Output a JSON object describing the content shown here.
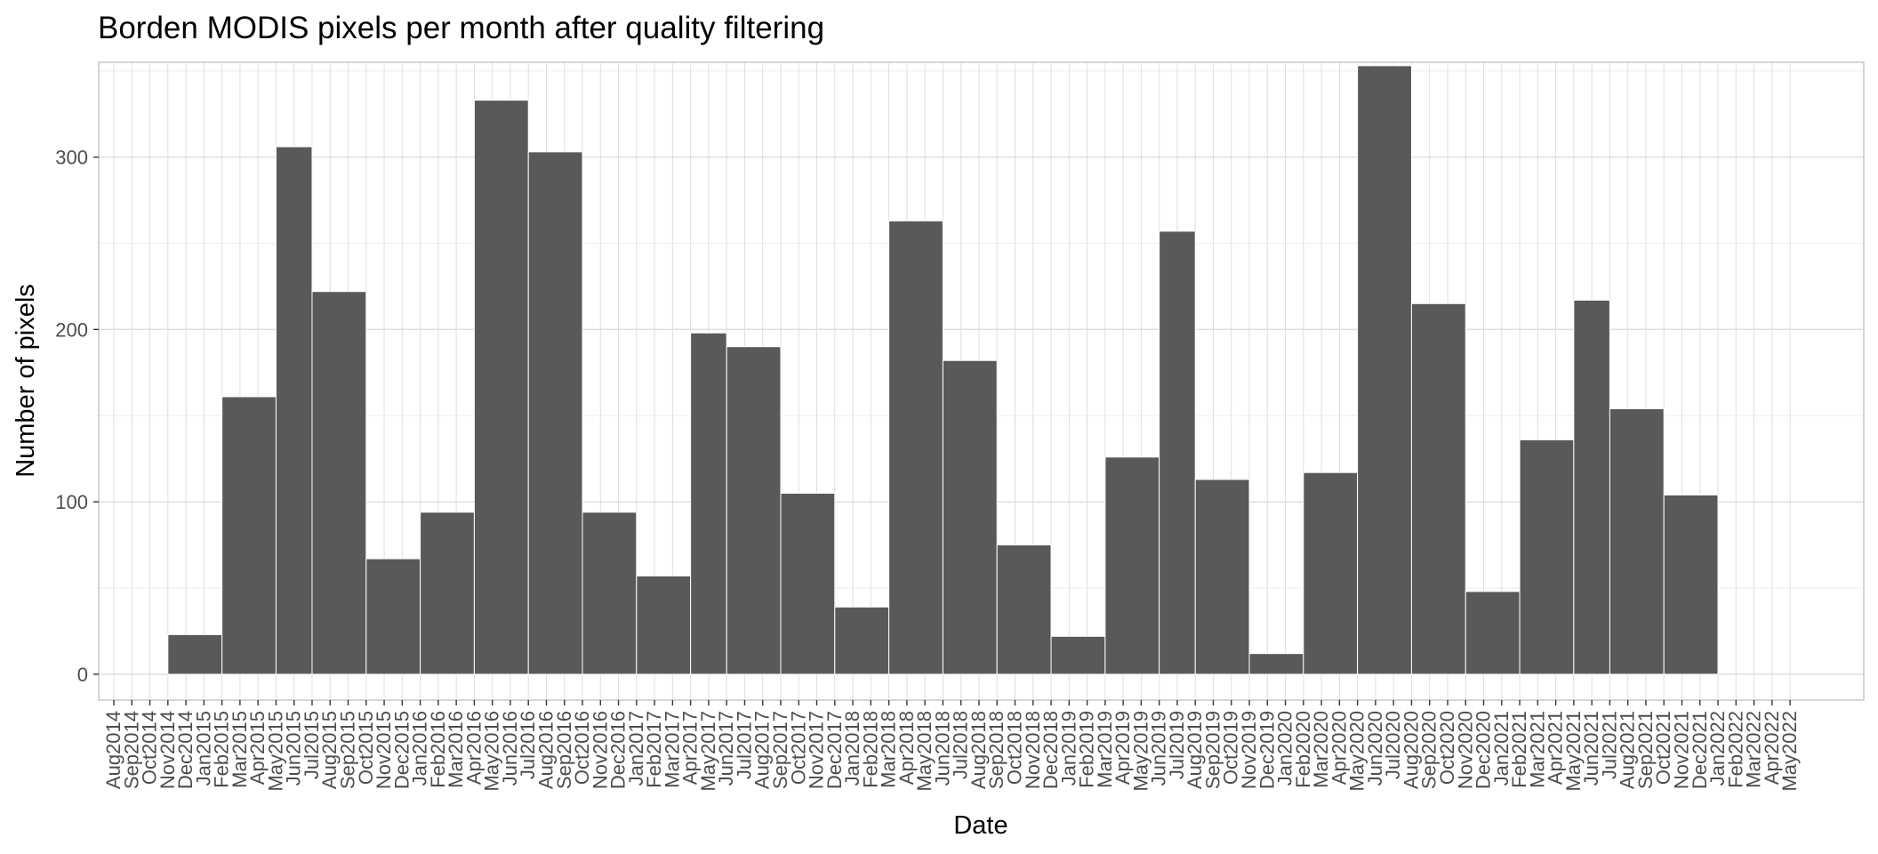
{
  "chart_data": {
    "type": "bar",
    "title": "Borden  MODIS pixels per month after quality filtering",
    "xlabel": "Date",
    "ylabel": "Number of pixels",
    "ylim": [
      -15,
      355
    ],
    "yticks": [
      0,
      100,
      200,
      300
    ],
    "grid": true,
    "legend": "none",
    "colors": {
      "bar": "#595959",
      "grid_major": "#dedede",
      "grid_minor": "#eeeeee",
      "panel_border": "#c8c8c8"
    },
    "x_tick_labels": [
      "Aug2014",
      "Sep2014",
      "Oct2014",
      "Nov2014",
      "Dec2014",
      "Jan2015",
      "Feb2015",
      "Mar2015",
      "Apr2015",
      "May2015",
      "Jun2015",
      "Jul2015",
      "Aug2015",
      "Sep2015",
      "Oct2015",
      "Nov2015",
      "Dec2015",
      "Jan2016",
      "Feb2016",
      "Mar2016",
      "Apr2016",
      "May2016",
      "Jun2016",
      "Jul2016",
      "Aug2016",
      "Sep2016",
      "Oct2016",
      "Nov2016",
      "Dec2016",
      "Jan2017",
      "Feb2017",
      "Mar2017",
      "Apr2017",
      "May2017",
      "Jun2017",
      "Jul2017",
      "Aug2017",
      "Sep2017",
      "Oct2017",
      "Nov2017",
      "Dec2017",
      "Jan2018",
      "Feb2018",
      "Mar2018",
      "Apr2018",
      "May2018",
      "Jun2018",
      "Jul2018",
      "Aug2018",
      "Sep2018",
      "Oct2018",
      "Nov2018",
      "Dec2018",
      "Jan2019",
      "Feb2019",
      "Mar2019",
      "Apr2019",
      "May2019",
      "Jun2019",
      "Jul2019",
      "Aug2019",
      "Sep2019",
      "Oct2019",
      "Nov2019",
      "Dec2019",
      "Jan2020",
      "Feb2020",
      "Mar2020",
      "Apr2020",
      "May2020",
      "Jun2020",
      "Jul2020",
      "Aug2020",
      "Sep2020",
      "Oct2020",
      "Nov2020",
      "Dec2020",
      "Jan2021",
      "Feb2021",
      "Mar2021",
      "Apr2021",
      "May2021",
      "Jun2021",
      "Jul2021",
      "Aug2021",
      "Sep2021",
      "Oct2021",
      "Nov2021",
      "Dec2021",
      "Jan2022",
      "Feb2022",
      "Mar2022",
      "Apr2022",
      "May2022"
    ],
    "bins": [
      {
        "start": "Nov2014",
        "end": "Feb2015",
        "value": 23
      },
      {
        "start": "Feb2015",
        "end": "May2015",
        "value": 161
      },
      {
        "start": "May2015",
        "end": "Jul2015",
        "value": 306
      },
      {
        "start": "Jul2015",
        "end": "Oct2015",
        "value": 222
      },
      {
        "start": "Oct2015",
        "end": "Jan2016",
        "value": 67
      },
      {
        "start": "Jan2016",
        "end": "Apr2016",
        "value": 94
      },
      {
        "start": "Apr2016",
        "end": "Jul2016",
        "value": 333
      },
      {
        "start": "Jul2016",
        "end": "Oct2016",
        "value": 303
      },
      {
        "start": "Oct2016",
        "end": "Jan2017",
        "value": 94
      },
      {
        "start": "Jan2017",
        "end": "Apr2017",
        "value": 57
      },
      {
        "start": "Apr2017",
        "end": "Jun2017",
        "value": 198
      },
      {
        "start": "Jun2017",
        "end": "Sep2017",
        "value": 190
      },
      {
        "start": "Sep2017",
        "end": "Dec2017",
        "value": 105
      },
      {
        "start": "Dec2017",
        "end": "Mar2018",
        "value": 39
      },
      {
        "start": "Mar2018",
        "end": "Jun2018",
        "value": 263
      },
      {
        "start": "Jun2018",
        "end": "Sep2018",
        "value": 182
      },
      {
        "start": "Sep2018",
        "end": "Dec2018",
        "value": 75
      },
      {
        "start": "Dec2018",
        "end": "Mar2019",
        "value": 22
      },
      {
        "start": "Mar2019",
        "end": "Jun2019",
        "value": 126
      },
      {
        "start": "Jun2019",
        "end": "Aug2019",
        "value": 257
      },
      {
        "start": "Aug2019",
        "end": "Nov2019",
        "value": 113
      },
      {
        "start": "Nov2019",
        "end": "Feb2020",
        "value": 12
      },
      {
        "start": "Feb2020",
        "end": "May2020",
        "value": 117
      },
      {
        "start": "May2020",
        "end": "Aug2020",
        "value": 353
      },
      {
        "start": "Aug2020",
        "end": "Nov2020",
        "value": 215
      },
      {
        "start": "Nov2020",
        "end": "Feb2021",
        "value": 48
      },
      {
        "start": "Feb2021",
        "end": "May2021",
        "value": 136
      },
      {
        "start": "May2021",
        "end": "Jul2021",
        "value": 217
      },
      {
        "start": "Jul2021",
        "end": "Oct2021",
        "value": 154
      },
      {
        "start": "Oct2021",
        "end": "Jan2022",
        "value": 104
      }
    ]
  }
}
